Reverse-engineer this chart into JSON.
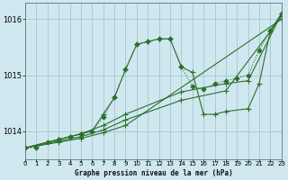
{
  "title": "Graphe pression niveau de la mer (hPa)",
  "background_color": "#cfe8f0",
  "grid_color": "#9dbfca",
  "line_color": "#2d6e2d",
  "xlim": [
    0,
    23
  ],
  "ylim": [
    1013.5,
    1016.3
  ],
  "yticks": [
    1014,
    1015,
    1016
  ],
  "xticks": [
    0,
    1,
    2,
    3,
    4,
    5,
    6,
    7,
    8,
    9,
    10,
    11,
    12,
    13,
    14,
    15,
    16,
    17,
    18,
    19,
    20,
    21,
    22,
    23
  ],
  "series": [
    {
      "x": [
        0,
        1,
        2,
        3,
        4,
        5,
        6,
        7,
        8,
        9,
        10,
        11,
        12,
        13,
        14,
        15,
        16,
        17,
        18,
        19,
        20,
        21,
        22,
        23
      ],
      "y": [
        1013.7,
        1013.7,
        1013.8,
        1013.85,
        1013.9,
        1013.95,
        1014.0,
        1014.25,
        1014.6,
        1015.1,
        1015.55,
        1015.6,
        1015.65,
        1015.65,
        1015.15,
        1014.8,
        1014.75,
        1014.85,
        1014.9,
        1014.95,
        1015.0,
        1015.45,
        1015.8,
        1016.1
      ],
      "marker": "D",
      "markersize": 2.5,
      "linestyle": ":"
    },
    {
      "x": [
        0,
        3,
        4,
        5,
        6,
        7,
        8,
        9,
        10,
        11,
        12,
        13,
        14,
        15,
        16,
        17,
        18,
        20,
        21,
        22,
        23
      ],
      "y": [
        1013.7,
        1013.85,
        1013.9,
        1013.95,
        1014.0,
        1014.3,
        1014.6,
        1015.1,
        1015.55,
        1015.6,
        1015.65,
        1015.65,
        1015.15,
        1015.05,
        1014.3,
        1014.3,
        1014.35,
        1014.4,
        1014.85,
        1015.8,
        1016.1
      ],
      "marker": "+",
      "markersize": 4,
      "linestyle": "-"
    },
    {
      "x": [
        0,
        3,
        5,
        7,
        9,
        14,
        18,
        20,
        23
      ],
      "y": [
        1013.7,
        1013.85,
        1013.95,
        1014.1,
        1014.3,
        1014.7,
        1014.85,
        1014.9,
        1016.1
      ],
      "marker": "+",
      "markersize": 4,
      "linestyle": "-"
    },
    {
      "x": [
        0,
        3,
        5,
        7,
        9,
        14,
        18,
        23
      ],
      "y": [
        1013.7,
        1013.82,
        1013.9,
        1014.02,
        1014.2,
        1014.55,
        1014.72,
        1016.05
      ],
      "marker": "+",
      "markersize": 4,
      "linestyle": "-"
    },
    {
      "x": [
        0,
        3,
        5,
        7,
        9,
        23
      ],
      "y": [
        1013.7,
        1013.8,
        1013.87,
        1013.97,
        1014.1,
        1016.0
      ],
      "marker": "+",
      "markersize": 4,
      "linestyle": "-"
    }
  ]
}
